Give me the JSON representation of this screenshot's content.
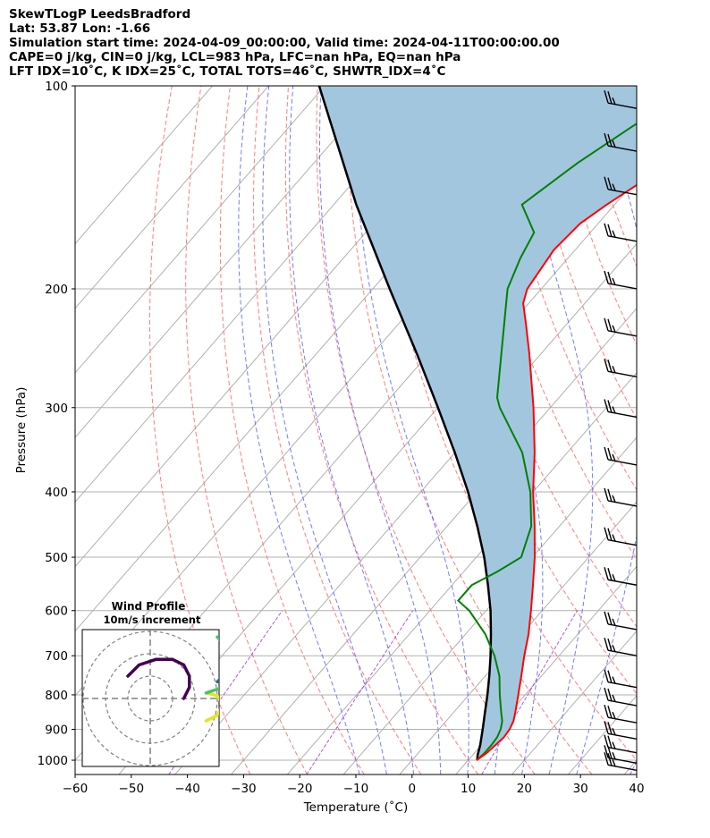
{
  "header": {
    "line1": "SkewTLogP LeedsBradford",
    "line2": "Lat: 53.87   Lon: -1.66",
    "line3": "Simulation start time: 2024-04-09_00:00:00, Valid time: 2024-04-11T00:00:00.00",
    "line4": "CAPE=0 j/kg, CIN=0 j/kg, LCL=983 hPa, LFC=nan hPa, EQ=nan hPa",
    "line5": "LFT IDX=10˚C, K IDX=25˚C, TOTAL TOTS=46˚C, SHWTR_IDX=4˚C"
  },
  "chart_data": [
    {
      "type": "line",
      "subtype": "skew-T log-P diagram",
      "xlabel": "Temperature (˚C)",
      "ylabel": "Pressure (hPa)",
      "xlim": [
        -60,
        40
      ],
      "ylim_hPa": [
        1050,
        100
      ],
      "x_ticks": [
        "−60",
        "−50",
        "−40",
        "−30",
        "−20",
        "−10",
        "0",
        "10",
        "20",
        "30",
        "40"
      ],
      "x_tick_values": [
        -60,
        -50,
        -40,
        -30,
        -20,
        -10,
        0,
        10,
        20,
        30,
        40
      ],
      "y_ticks": [
        100,
        200,
        300,
        400,
        500,
        600,
        700,
        800,
        900,
        1000
      ],
      "y_scale": "log",
      "grid": true,
      "colors": {
        "temperature": "#ff0000",
        "dewpoint": "#008000",
        "parcel": "#000000",
        "shading": "#a3c6df",
        "dry_adiabat": "#ff6666",
        "moist_adiabat": "#5566ff",
        "mixing_ratio": "#9933cc"
      },
      "series": [
        {
          "key": "temperature",
          "p": [
            1000,
            975,
            950,
            925,
            900,
            875,
            850,
            800,
            750,
            700,
            650,
            600,
            550,
            500,
            450,
            400,
            350,
            300,
            250,
            225,
            210,
            200,
            175,
            160,
            150,
            140,
            130,
            120,
            110,
            105,
            100
          ],
          "x": [
            11.5,
            12.2,
            12.5,
            12.8,
            12.6,
            12.0,
            11.0,
            8.8,
            6.4,
            3.8,
            1.2,
            -2.0,
            -5.6,
            -9.6,
            -14.4,
            -20.0,
            -25.8,
            -33.0,
            -42.0,
            -47.4,
            -51.0,
            -52.5,
            -53.8,
            -53.2,
            -51.4,
            -49.0,
            -45.8,
            -42.4,
            -40.0,
            -39.8,
            -39.6
          ]
        },
        {
          "key": "dewpoint",
          "p": [
            1000,
            975,
            950,
            925,
            900,
            875,
            850,
            800,
            750,
            700,
            650,
            600,
            580,
            550,
            525,
            500,
            450,
            400,
            350,
            300,
            290,
            250,
            200,
            180,
            165,
            150,
            130,
            115,
            100
          ],
          "x": [
            11.5,
            11.8,
            11.8,
            11.6,
            11.0,
            10.0,
            8.5,
            5.5,
            2.5,
            -1.5,
            -6.5,
            -13.0,
            -16.5,
            -16.5,
            -14.0,
            -12.0,
            -15.0,
            -20.5,
            -28.0,
            -39.0,
            -41.0,
            -47.0,
            -56.0,
            -58.5,
            -60.0,
            -66.5,
            -63.0,
            -59.0,
            -54.0
          ]
        },
        {
          "key": "parcel",
          "p": [
            1000,
            983,
            950,
            900,
            850,
            800,
            750,
            700,
            650,
            600,
            550,
            500,
            450,
            400,
            350,
            300,
            250,
            200,
            150,
            100
          ],
          "x": [
            11.6,
            10.9,
            9.8,
            7.8,
            5.6,
            3.3,
            0.7,
            -2.2,
            -5.5,
            -9.2,
            -13.6,
            -18.6,
            -24.6,
            -31.6,
            -40.0,
            -50.0,
            -62.0,
            -77.0,
            -96.0,
            -121.0
          ]
        }
      ],
      "wind_barbs": [
        {
          "p": 1035,
          "speed_kt": 25
        },
        {
          "p": 1010,
          "speed_kt": 25
        },
        {
          "p": 975,
          "speed_kt": 25
        },
        {
          "p": 930,
          "speed_kt": 25
        },
        {
          "p": 880,
          "speed_kt": 25
        },
        {
          "p": 830,
          "speed_kt": 25
        },
        {
          "p": 780,
          "speed_kt": 25
        },
        {
          "p": 700,
          "speed_kt": 25
        },
        {
          "p": 640,
          "speed_kt": 25
        },
        {
          "p": 550,
          "speed_kt": 25
        },
        {
          "p": 480,
          "speed_kt": 25
        },
        {
          "p": 420,
          "speed_kt": 25
        },
        {
          "p": 365,
          "speed_kt": 25
        },
        {
          "p": 310,
          "speed_kt": 25
        },
        {
          "p": 270,
          "speed_kt": 25
        },
        {
          "p": 235,
          "speed_kt": 25
        },
        {
          "p": 200,
          "speed_kt": 25
        },
        {
          "p": 170,
          "speed_kt": 25
        },
        {
          "p": 145,
          "speed_kt": 25
        },
        {
          "p": 125,
          "speed_kt": 25
        },
        {
          "p": 108,
          "speed_kt": 25
        }
      ]
    },
    {
      "type": "line",
      "subtype": "hodograph",
      "title": "Wind Profile",
      "subtitle": "10m/s increment",
      "ring_step": 10,
      "series": [
        {
          "key": "low_levels",
          "color": "#e3e61b",
          "u": [
            10,
            12,
            13,
            12,
            10
          ],
          "v": [
            -4,
            -3,
            -1,
            0.5,
            1
          ]
        },
        {
          "key": "mid_low",
          "color": "#4ac16d",
          "u": [
            10,
            13,
            15,
            16,
            14,
            12
          ],
          "v": [
            1,
            2,
            4,
            6,
            9,
            11
          ]
        },
        {
          "key": "mid",
          "color": "#31688e",
          "u": [
            12,
            13,
            14,
            15
          ],
          "v": [
            3,
            4,
            5,
            5.5
          ]
        },
        {
          "key": "upper",
          "color": "#440154",
          "u": [
            -4,
            -2,
            1,
            4,
            6,
            7,
            7,
            6
          ],
          "v": [
            4,
            6,
            7,
            7,
            6,
            4,
            2,
            0
          ]
        }
      ]
    }
  ]
}
